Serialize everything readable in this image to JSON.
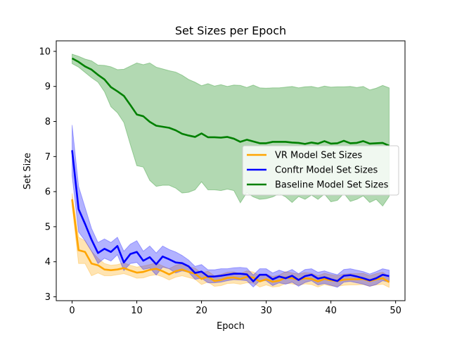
{
  "chart_data": {
    "type": "line",
    "title": "Set Sizes per Epoch",
    "xlabel": "Epoch",
    "ylabel": "Set Size",
    "xlim": [
      -2.45,
      51.45
    ],
    "ylim": [
      2.89,
      10.3
    ],
    "xticks": [
      0,
      10,
      20,
      30,
      40,
      50
    ],
    "yticks": [
      3,
      4,
      5,
      6,
      7,
      8,
      9,
      10
    ],
    "grid": false,
    "legend_position": "center-right",
    "x": [
      0,
      1,
      2,
      3,
      4,
      5,
      6,
      7,
      8,
      9,
      10,
      11,
      12,
      13,
      14,
      15,
      16,
      17,
      18,
      19,
      20,
      21,
      22,
      23,
      24,
      25,
      26,
      27,
      28,
      29,
      30,
      31,
      32,
      33,
      34,
      35,
      36,
      37,
      38,
      39,
      40,
      41,
      42,
      43,
      44,
      45,
      46,
      47,
      48,
      49
    ],
    "series": [
      {
        "name": "VR Model Set Sizes",
        "color": "#ffa500",
        "mean": [
          5.78,
          4.33,
          4.28,
          3.95,
          3.9,
          3.78,
          3.76,
          3.78,
          3.82,
          3.75,
          3.69,
          3.71,
          3.77,
          3.8,
          3.73,
          3.64,
          3.73,
          3.78,
          3.71,
          3.66,
          3.51,
          3.58,
          3.45,
          3.48,
          3.54,
          3.55,
          3.51,
          3.57,
          3.55,
          3.44,
          3.5,
          3.43,
          3.46,
          3.55,
          3.53,
          3.49,
          3.53,
          3.51,
          3.44,
          3.51,
          3.47,
          3.45,
          3.49,
          3.5,
          3.5,
          3.51,
          3.45,
          3.5,
          3.53,
          3.42
        ],
        "upper": [
          5.95,
          4.7,
          4.6,
          4.3,
          4.1,
          3.95,
          3.9,
          3.92,
          3.97,
          3.9,
          3.85,
          3.88,
          3.92,
          3.97,
          3.88,
          3.8,
          3.9,
          3.94,
          3.86,
          3.82,
          3.68,
          3.73,
          3.6,
          3.64,
          3.7,
          3.71,
          3.66,
          3.74,
          3.71,
          3.6,
          3.65,
          3.58,
          3.62,
          3.72,
          3.68,
          3.65,
          3.69,
          3.67,
          3.6,
          3.67,
          3.63,
          3.6,
          3.65,
          3.66,
          3.66,
          3.67,
          3.6,
          3.66,
          3.7,
          3.58
        ],
        "lower": [
          5.6,
          3.95,
          3.95,
          3.6,
          3.68,
          3.6,
          3.6,
          3.63,
          3.66,
          3.6,
          3.53,
          3.54,
          3.6,
          3.63,
          3.57,
          3.48,
          3.56,
          3.6,
          3.55,
          3.5,
          3.35,
          3.42,
          3.3,
          3.32,
          3.38,
          3.39,
          3.36,
          3.4,
          3.39,
          3.28,
          3.34,
          3.28,
          3.3,
          3.38,
          3.37,
          3.33,
          3.37,
          3.35,
          3.28,
          3.35,
          3.31,
          3.3,
          3.33,
          3.34,
          3.34,
          3.35,
          3.3,
          3.34,
          3.36,
          3.27
        ]
      },
      {
        "name": "Conftr Model Set Sizes",
        "color": "#0000ff",
        "mean": [
          7.18,
          5.5,
          5.08,
          4.63,
          4.25,
          4.37,
          4.28,
          4.45,
          3.98,
          4.22,
          4.28,
          4.03,
          4.13,
          3.93,
          4.15,
          4.07,
          3.98,
          3.96,
          3.87,
          3.68,
          3.72,
          3.58,
          3.58,
          3.6,
          3.63,
          3.66,
          3.66,
          3.64,
          3.44,
          3.63,
          3.63,
          3.5,
          3.58,
          3.53,
          3.6,
          3.48,
          3.59,
          3.63,
          3.52,
          3.56,
          3.5,
          3.45,
          3.6,
          3.62,
          3.58,
          3.53,
          3.47,
          3.53,
          3.63,
          3.59
        ],
        "upper": [
          7.9,
          6.15,
          5.55,
          4.95,
          4.55,
          4.65,
          4.55,
          4.7,
          4.3,
          4.5,
          4.6,
          4.3,
          4.45,
          4.25,
          4.45,
          4.35,
          4.28,
          4.18,
          4.05,
          3.87,
          3.92,
          3.77,
          3.77,
          3.8,
          3.8,
          3.83,
          3.84,
          3.82,
          3.62,
          3.8,
          3.8,
          3.68,
          3.76,
          3.7,
          3.78,
          3.66,
          3.78,
          3.8,
          3.7,
          3.74,
          3.68,
          3.63,
          3.78,
          3.8,
          3.76,
          3.72,
          3.65,
          3.72,
          3.8,
          3.76
        ],
        "lower": [
          6.45,
          4.85,
          4.6,
          4.3,
          3.95,
          4.1,
          4.02,
          4.2,
          3.75,
          3.95,
          3.98,
          3.78,
          3.82,
          3.62,
          3.85,
          3.8,
          3.68,
          3.74,
          3.7,
          3.5,
          3.53,
          3.4,
          3.4,
          3.42,
          3.46,
          3.49,
          3.48,
          3.46,
          3.28,
          3.46,
          3.46,
          3.32,
          3.4,
          3.36,
          3.42,
          3.3,
          3.41,
          3.46,
          3.34,
          3.38,
          3.33,
          3.27,
          3.42,
          3.44,
          3.4,
          3.36,
          3.3,
          3.35,
          3.46,
          3.42
        ]
      },
      {
        "name": "Baseline Model Set Sizes",
        "color": "#008000",
        "mean": [
          9.8,
          9.7,
          9.57,
          9.48,
          9.33,
          9.2,
          8.98,
          8.86,
          8.73,
          8.47,
          8.2,
          8.15,
          7.99,
          7.88,
          7.85,
          7.82,
          7.75,
          7.65,
          7.6,
          7.56,
          7.66,
          7.55,
          7.55,
          7.54,
          7.56,
          7.51,
          7.42,
          7.48,
          7.43,
          7.38,
          7.38,
          7.42,
          7.42,
          7.42,
          7.4,
          7.39,
          7.36,
          7.4,
          7.37,
          7.44,
          7.37,
          7.38,
          7.45,
          7.38,
          7.39,
          7.44,
          7.37,
          7.38,
          7.39,
          7.31
        ],
        "upper": [
          9.92,
          9.86,
          9.78,
          9.73,
          9.61,
          9.6,
          9.56,
          9.48,
          9.49,
          9.58,
          9.67,
          9.62,
          9.67,
          9.55,
          9.5,
          9.45,
          9.41,
          9.32,
          9.2,
          9.12,
          9.02,
          9.08,
          9.01,
          9.05,
          9.0,
          9.04,
          9.03,
          8.97,
          9.04,
          8.96,
          8.95,
          8.96,
          8.96,
          8.98,
          9.0,
          8.96,
          8.99,
          9.0,
          8.96,
          9.01,
          8.98,
          8.99,
          8.99,
          9.0,
          8.97,
          9.0,
          8.9,
          8.95,
          9.03,
          8.96
        ],
        "lower": [
          9.65,
          9.55,
          9.4,
          9.25,
          9.12,
          8.85,
          8.42,
          8.25,
          7.97,
          7.34,
          6.74,
          6.7,
          6.32,
          6.15,
          6.18,
          6.18,
          6.1,
          5.96,
          5.98,
          6.05,
          6.28,
          6.05,
          6.05,
          6.03,
          6.07,
          6.03,
          5.68,
          5.97,
          5.85,
          5.78,
          5.8,
          5.85,
          5.94,
          5.85,
          5.69,
          5.86,
          5.78,
          5.9,
          5.78,
          5.93,
          5.71,
          5.75,
          5.95,
          5.72,
          5.78,
          5.88,
          5.69,
          5.78,
          5.59,
          5.86
        ]
      }
    ]
  }
}
